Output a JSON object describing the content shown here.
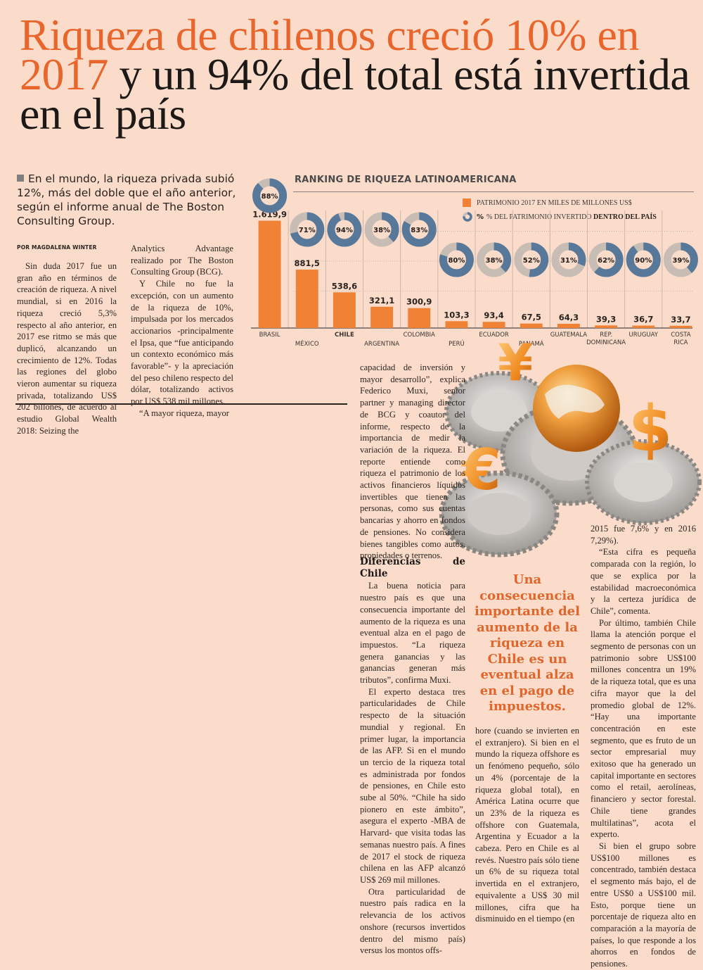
{
  "headline": {
    "orange_part": "Riqueza de chilenos creció 10% en 2017",
    "dark_part": "y un 94% del total está invertida en el país"
  },
  "deck": "En el mundo, la riqueza privada subió 12%, más del doble que el año anterior, según el informe anual de The Boston Consulting Group.",
  "byline": "POR MAGDALENA WINTER",
  "col1": [
    "Sin duda 2017 fue un gran año en términos de creación de riqueza. A nivel mundial, si en 2016 la riqueza creció 5,3% respecto al año anterior, en 2017 ese ritmo se más que duplicó, alcanzando un crecimiento de 12%. Todas las regiones del globo vieron aumentar su riqueza privada, totalizando US$ 202 billones, de acuerdo al estudio Global Wealth 2018: Seizing the"
  ],
  "col2": [
    "Analytics Advantage realizado por The Boston Consulting Group (BCG).",
    "Y Chile no fue la excepción, con un aumento de la riqueza de 10%, impulsada por los mercados accionarios -principalmente el Ipsa, que “fue anticipando un contexto económico más favorable”- y la apreciación del peso chileno respecto del dólar, totalizando activos por US$ 538 mil millones.",
    "“A mayor riqueza, mayor"
  ],
  "col3a": [
    "capacidad de inversión y mayor desarrollo”, explica Federico Muxi, senior partner y managing director de BCG y coautor del informe, respecto de la importancia de medir la variación de la riqueza. El reporte entiende como riqueza el patrimonio de los activos financieros líquidos invertibles que tienen las personas, como sus cuentas bancarias y ahorro en fondos de pensiones. No considera bienes tangibles como autos, propiedades o terrenos."
  ],
  "section_heading": "Diferencias de Chile",
  "col3b": [
    "La buena noticia para nuestro país es que una consecuencia importante del aumento de la riqueza es una eventual alza en el pago de impuestos. “La riqueza genera ganancias y las ganancias generan más tributos”, confirma Muxi.",
    "El experto destaca tres particularidades de Chile respecto de la situación mundial y regional. En primer lugar, la importancia de las AFP. Si en el mundo un tercio de la riqueza total es administrada por fondos de pensiones, en Chile esto sube al 50%. “Chile ha sido pionero en este ámbito”, asegura el experto -MBA de Harvard- que visita todas las semanas nuestro país. A fines de 2017 el stock de riqueza chilena en las AFP alcanzó US$ 269 mil millones.",
    "Otra particularidad de nuestro país radica en la relevancia de los activos onshore (recursos invertidos dentro del mismo país) versus los montos offs-"
  ],
  "pullquote": "Una consecuencia importante del aumento de la riqueza en Chile es un eventual alza en el pago de impuestos.",
  "col4": [
    "hore (cuando se invierten en el extranjero). Si bien en el mundo la riqueza offshore es un fenómeno pequeño, sólo un 4% (porcentaje de la riqueza global total), en América Latina ocurre que un 23% de la riqueza es offshore con Guatemala, Argentina y Ecuador a la cabeza. Pero en Chile es al revés. Nuestro país sólo tiene un 6% de su riqueza total invertida en el extranjero, equivalente a US$ 30 mil millones, cifra que ha disminuido en el tiempo (en"
  ],
  "col5": [
    "2015 fue 7,6% y en 2016 7,29%).",
    "“Esta cifra es pequeña comparada con la región, lo que se explica por la estabilidad macroeconómica y la certeza jurídica de Chile”, comenta.",
    "Por último, también Chile llama la atención porque el segmento de personas con un patrimonio sobre US$100 millones concentra un 19% de la riqueza total, que es una cifra mayor que la del promedio global de 12%. “Hay una importante concentración en este segmento, que es fruto de un sector empresarial muy exitoso que ha generado un capital importante en sectores como el retail, aerolíneas, financiero y sector forestal. Chile tiene grandes multilatinas”, acota el experto.",
    "Si bien el grupo sobre US$100 millones es concentrado, también destaca el segmento más bajo, el de entre US$0 a US$100 mil. Esto, porque tiene un porcentaje de riqueza alto en comparación a la mayoría de países, lo que responde a los ahorros en fondos de pensiones."
  ],
  "illustration": {
    "description": "gears-with-globe-and-currency-symbols",
    "symbols": [
      "¥",
      "€",
      "$"
    ]
  },
  "colors": {
    "background": "#fbdcca",
    "accent_orange": "#e8652c",
    "bar_orange": "#f08236",
    "donut_blue": "#58789a",
    "donut_gray": "#c8bdb5"
  },
  "chart_data": {
    "type": "bar",
    "title": "RANKING DE RIQUEZA LATINOAMERICANA",
    "legend": {
      "bar_label": "PATRIMONIO 2017 EN MILES DE MILLONES US$",
      "donut_label_prefix": "% DEL PATRIMONIO INVERTIDO",
      "donut_label_bold": "DENTRO DEL PAÍS",
      "placement": "top-right"
    },
    "categories": [
      "BRASIL",
      "MÉXICO",
      "CHILE",
      "ARGENTINA",
      "COLOMBIA",
      "PERÚ",
      "ECUADOR",
      "PANAMÁ",
      "GUATEMALA",
      "REP. DOMINICANA",
      "URUGUAY",
      "COSTA RICA"
    ],
    "highlight_category": "CHILE",
    "series": [
      {
        "name": "Patrimonio 2017 (miles de millones US$)",
        "values": [
          1619.9,
          881.5,
          538.6,
          321.1,
          300.9,
          103.3,
          93.4,
          67.5,
          64.3,
          39.3,
          36.7,
          33.7
        ],
        "labels": [
          "1.619,9",
          "881,5",
          "538,6",
          "321,1",
          "300,9",
          "103,3",
          "93,4",
          "67,5",
          "64,3",
          "39,3",
          "36,7",
          "33,7"
        ]
      },
      {
        "name": "% del patrimonio invertido dentro del país",
        "values": [
          88,
          71,
          94,
          38,
          83,
          80,
          38,
          52,
          31,
          62,
          90,
          39
        ]
      }
    ],
    "xlabel": "",
    "ylabel": "",
    "ylim": [
      0,
      1700
    ],
    "grid": true
  }
}
